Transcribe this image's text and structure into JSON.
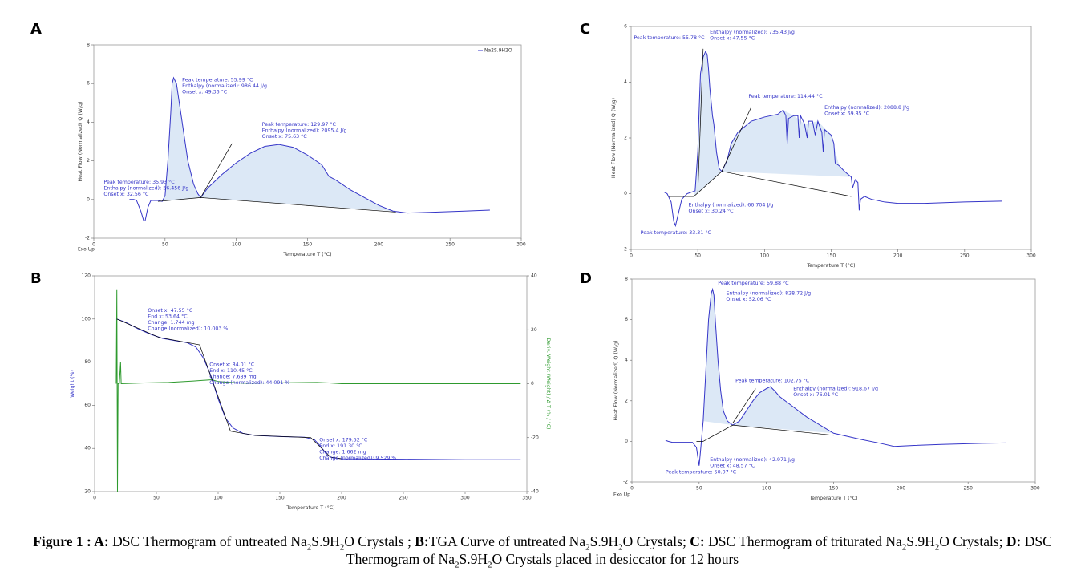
{
  "chart_data": [
    {
      "type": "line",
      "label": "A",
      "xlabel": "Temperature T (°C)",
      "ylabel": "Heat Flow (Normalized) Q (W/g)",
      "note": "Exo Up",
      "xlim": [
        0,
        300
      ],
      "xticks": [
        0,
        50,
        100,
        150,
        200,
        250,
        300
      ],
      "ylim": [
        -2,
        8
      ],
      "yticks": [
        -2,
        0,
        2,
        4,
        6,
        8
      ],
      "legend": "upper right",
      "series": [
        {
          "fill": "#dce8f6",
          "x": [
            48,
            50,
            52,
            54,
            56,
            58,
            60,
            63,
            66,
            70,
            73,
            75
          ],
          "values": [
            -0.1,
            0.2,
            2,
            4.5,
            6.3,
            6,
            5,
            3.5,
            2,
            0.8,
            0.3,
            0.1
          ]
        },
        {
          "fill": "#dce8f6",
          "x": [
            75,
            80,
            90,
            100,
            110,
            120,
            130,
            140,
            150,
            160,
            165,
            170,
            180,
            190,
            200,
            210
          ],
          "values": [
            0.1,
            0.6,
            1.3,
            1.9,
            2.4,
            2.75,
            2.85,
            2.7,
            2.3,
            1.8,
            1.2,
            1.0,
            0.5,
            0.1,
            -0.3,
            -0.6
          ]
        },
        {
          "name": "Na2S.9H2O",
          "color": "#3535c8",
          "x": [
            25,
            28,
            30,
            33,
            35,
            36,
            38,
            40,
            45,
            48,
            50,
            52,
            54,
            55,
            56,
            58,
            60,
            63,
            66,
            70,
            73,
            75,
            80,
            90,
            100,
            110,
            120,
            130,
            140,
            150,
            160,
            165,
            170,
            180,
            190,
            200,
            210,
            220,
            240,
            260,
            278
          ],
          "values": [
            0,
            0,
            -0.05,
            -0.6,
            -1.1,
            -1.1,
            -0.4,
            -0.05,
            -0.05,
            -0.1,
            0.2,
            2,
            4.5,
            6,
            6.3,
            6,
            5,
            3.5,
            2,
            0.8,
            0.3,
            0.1,
            0.6,
            1.3,
            1.9,
            2.4,
            2.75,
            2.85,
            2.7,
            2.3,
            1.8,
            1.2,
            1.0,
            0.5,
            0.1,
            -0.3,
            -0.6,
            -0.7,
            -0.65,
            -0.6,
            -0.55
          ]
        },
        {
          "color": "#000000",
          "x": [
            45,
            75,
            212
          ],
          "values": [
            -0.1,
            0.1,
            -0.65
          ]
        },
        {
          "color": "#000000",
          "x": [
            75,
            97
          ],
          "values": [
            0.1,
            2.9
          ]
        }
      ],
      "annotations": [
        [
          "Peak temperature: 55.99 °C",
          "Enthalpy (normalized): 986.44 J/g",
          "Onset x: 49.36 °C"
        ],
        [
          "Peak temperature: 129.97 °C",
          "Enthalpy (normalized): 2095.4 J/g",
          "Onset x: 75.63 °C"
        ],
        [
          "Peak temperature: 35.93 °C",
          "Enthalpy (normalized): 56.456 J/g",
          "Onset x: 32.56 °C"
        ]
      ]
    },
    {
      "type": "line",
      "label": "B",
      "xlabel": "Temperature T (°C)",
      "ylabel": "Weight (%)",
      "y2label": "Deriv. Weight (Weight) / Δ T (% / °C)",
      "xlim": [
        0,
        350
      ],
      "xticks": [
        0,
        50,
        100,
        150,
        200,
        250,
        300,
        350
      ],
      "ylim": [
        20,
        120
      ],
      "yticks": [
        20,
        40,
        60,
        80,
        100,
        120
      ],
      "y2lim": [
        -40,
        40
      ],
      "y2ticks": [
        -40,
        -20,
        0,
        20,
        40
      ],
      "series": [
        {
          "color": "#2e9a2e",
          "axis": "y2",
          "x": [
            17.5,
            18,
            18.5,
            19,
            20,
            21,
            21.5,
            40,
            60,
            80,
            95,
            100,
            120,
            180,
            190,
            200,
            345
          ],
          "values": [
            0,
            35,
            -40,
            0,
            0,
            8,
            0,
            0.3,
            0.5,
            1,
            1.5,
            0.8,
            0.2,
            0.5,
            0.3,
            0,
            0
          ]
        },
        {
          "color": "#3535c8",
          "x": [
            18,
            25,
            35,
            45,
            55,
            65,
            75,
            82,
            88,
            94,
            100,
            106,
            112,
            120,
            130,
            150,
            170,
            178,
            183,
            188,
            192,
            200,
            250,
            300,
            345
          ],
          "values": [
            100,
            98.5,
            95.5,
            93,
            91,
            90,
            89,
            87,
            82,
            74,
            63,
            54,
            49.5,
            47,
            46,
            45.5,
            45.2,
            44,
            41,
            37,
            35.8,
            35.2,
            35,
            34.8,
            34.8
          ]
        },
        {
          "color": "#000000",
          "x": [
            18,
            52,
            85,
            110,
            130,
            175,
            191,
            200
          ],
          "values": [
            100,
            91.5,
            88,
            48,
            46,
            45,
            36,
            35.2
          ]
        }
      ],
      "annotations": [
        [
          "Onset x: 47.55 °C",
          "End x: 53.64 °C",
          "Change: 1.744 mg",
          "Change (normalized): 10.003 %"
        ],
        [
          "Onset x: 84.01 °C",
          "End x: 110.45 °C",
          "Change: 7.689 mg",
          "Change (normalized): 44.091 %"
        ],
        [
          "Onset x: 179.52 °C",
          "End x: 191.30 °C",
          "Change: 1.662 mg",
          "Change (normalized): 9.529 %"
        ]
      ]
    },
    {
      "type": "line",
      "label": "C",
      "xlabel": "Temperature T (°C)",
      "ylabel": "Heat Flow (Normalized) Q (W/g)",
      "xlim": [
        0,
        300
      ],
      "xticks": [
        0,
        50,
        100,
        150,
        200,
        250,
        300
      ],
      "ylim": [
        -2,
        6
      ],
      "yticks": [
        -2,
        0,
        2,
        4,
        6
      ],
      "series": [
        {
          "fill": "#dce8f6",
          "x": [
            47,
            48,
            50,
            51,
            52,
            53,
            54,
            55.8,
            57,
            58,
            59,
            60,
            61,
            62,
            64,
            66,
            68
          ],
          "values": [
            -0.1,
            0.1,
            1.5,
            3,
            4.3,
            4.6,
            4.9,
            5.1,
            5,
            4.5,
            3.8,
            3.3,
            2.8,
            2.5,
            1.5,
            0.9,
            0.8
          ]
        },
        {
          "fill": "#dce8f6",
          "x": [
            68,
            72,
            75,
            80,
            85,
            90,
            100,
            110,
            114,
            122,
            130,
            140,
            150,
            156,
            160,
            165
          ],
          "values": [
            0.8,
            1.2,
            1.8,
            2.2,
            2.4,
            2.6,
            2.75,
            2.85,
            3.0,
            2.8,
            2.5,
            2.6,
            2.1,
            1.0,
            0.8,
            0.6
          ]
        },
        {
          "color": "#3535c8",
          "x": [
            25,
            27,
            30,
            32,
            33.3,
            35,
            38,
            42,
            45,
            48,
            50,
            51,
            52,
            53,
            54,
            55.8,
            57,
            58,
            59,
            60,
            61,
            62,
            64,
            66,
            68,
            72,
            75,
            80,
            85,
            90,
            100,
            110,
            114,
            116,
            117,
            118,
            122,
            125,
            126,
            127,
            130,
            132,
            133,
            136,
            138,
            140,
            143,
            144,
            145,
            150,
            152,
            153,
            156,
            160,
            165,
            166,
            168,
            170,
            171,
            172,
            175,
            180,
            185,
            190,
            200,
            220,
            250,
            278
          ],
          "values": [
            0.05,
            0,
            -0.3,
            -1,
            -1.15,
            -0.8,
            -0.2,
            0,
            0.05,
            0.1,
            1.5,
            3,
            4.3,
            4.6,
            4.9,
            5.1,
            5,
            4.5,
            3.8,
            3.3,
            2.8,
            2.5,
            1.5,
            0.9,
            0.8,
            1.2,
            1.8,
            2.2,
            2.4,
            2.6,
            2.75,
            2.85,
            3.0,
            2.8,
            1.8,
            2.7,
            2.8,
            2.8,
            2.0,
            2.8,
            2.5,
            2.0,
            2.6,
            2.6,
            2.1,
            2.6,
            2.2,
            1.5,
            2.3,
            2.1,
            1.8,
            1.1,
            1.0,
            0.8,
            0.6,
            0.2,
            0.5,
            0.4,
            -0.6,
            -0.2,
            -0.1,
            -0.2,
            -0.25,
            -0.3,
            -0.35,
            -0.35,
            -0.3,
            -0.27
          ]
        },
        {
          "color": "#000000",
          "x": [
            28,
            47,
            68,
            165
          ],
          "values": [
            -0.1,
            -0.1,
            0.8,
            -0.1
          ]
        },
        {
          "color": "#000000",
          "x": [
            68,
            90
          ],
          "values": [
            0.8,
            3.1
          ]
        },
        {
          "color": "#000000",
          "x": [
            50,
            54
          ],
          "values": [
            0,
            5.2
          ]
        }
      ],
      "annotations": [
        [
          "Peak temperature: 55.78 °C"
        ],
        [
          "Enthalpy (normalized): 735.43 J/g",
          "Onset x: 47.55 °C"
        ],
        [
          "Peak temperature: 114.44 °C"
        ],
        [
          "Enthalpy (normalized): 2088.8 J/g",
          "Onset x: 69.85 °C"
        ],
        [
          "Enthalpy (normalized): 66.704 J/g",
          "Onset x: 30.24 °C"
        ],
        [
          "Peak temperature: 33.31 °C"
        ]
      ]
    },
    {
      "type": "line",
      "label": "D",
      "xlabel": "Temperature T (°C)",
      "ylabel": "Heat Flow (Normalized) Q (W/g)",
      "note": "Exo Up",
      "xlim": [
        0,
        300
      ],
      "xticks": [
        0,
        50,
        100,
        150,
        200,
        250,
        300
      ],
      "ylim": [
        -2,
        8
      ],
      "yticks": [
        -2,
        0,
        2,
        4,
        6,
        8
      ],
      "series": [
        {
          "fill": "#dce8f6",
          "x": [
            53,
            55,
            57,
            59,
            60,
            61,
            62,
            64,
            66,
            68,
            71,
            75
          ],
          "values": [
            1,
            3.5,
            6,
            7.3,
            7.5,
            7.2,
            6,
            4,
            2.5,
            1.5,
            1.0,
            0.8
          ]
        },
        {
          "fill": "#dce8f6",
          "x": [
            75,
            80,
            85,
            90,
            95,
            100,
            103,
            106,
            110,
            120,
            130,
            140,
            150
          ],
          "values": [
            0.8,
            1.0,
            1.5,
            2.0,
            2.4,
            2.6,
            2.7,
            2.5,
            2.2,
            1.7,
            1.2,
            0.8,
            0.4
          ]
        },
        {
          "color": "#3535c8",
          "x": [
            25,
            27,
            30,
            40,
            45,
            48,
            50,
            51,
            53,
            55,
            57,
            59,
            60,
            61,
            62,
            64,
            66,
            68,
            71,
            75,
            80,
            85,
            90,
            95,
            100,
            103,
            106,
            110,
            120,
            130,
            140,
            150,
            170,
            185,
            195,
            210,
            230,
            260,
            278
          ],
          "values": [
            0.05,
            0,
            -0.05,
            -0.05,
            -0.05,
            -0.3,
            -1.2,
            -0.5,
            1,
            3.5,
            6,
            7.3,
            7.5,
            7.2,
            6,
            4,
            2.5,
            1.5,
            1.0,
            0.8,
            1.0,
            1.5,
            2.0,
            2.4,
            2.6,
            2.7,
            2.5,
            2.2,
            1.7,
            1.2,
            0.8,
            0.4,
            0.1,
            -0.1,
            -0.25,
            -0.2,
            -0.15,
            -0.1,
            -0.08
          ]
        },
        {
          "color": "#000000",
          "x": [
            48,
            53,
            75,
            150
          ],
          "values": [
            0,
            0,
            0.8,
            0.3
          ]
        },
        {
          "color": "#000000",
          "x": [
            75,
            92
          ],
          "values": [
            0.9,
            2.6
          ]
        }
      ],
      "annotations": [
        [
          "Peak temperature: 59.88 °C"
        ],
        [
          "Enthalpy (normalized): 828.72 J/g",
          "Onset x: 52.06 °C"
        ],
        [
          "Peak temperature: 102.75 °C"
        ],
        [
          "Enthalpy (normalized): 918.67 J/g",
          "Onset x: 76.01 °C"
        ],
        [
          "Enthalpy (normalized): 42.971 J/g",
          "Onset x: 48.57 °C"
        ],
        [
          "Peak temperature: 50.07 °C"
        ]
      ]
    }
  ],
  "caption": [
    "Figure 1 : ",
    "A:",
    " DSC Thermogram of untreated Na",
    "2",
    "S.9H",
    "2",
    "O Crystals ; ",
    "B:",
    "TGA Curve of untreated Na",
    "2",
    "S.9H",
    "2",
    "O Crystals; ",
    "C:",
    " DSC Thermogram of triturated Na",
    "2",
    "S.9H",
    "2",
    "O Crystals; ",
    "D:",
    " DSC Thermogram of Na",
    "2",
    "S.9H",
    "2",
    "O Crystals placed in desiccator for 12 hours"
  ]
}
